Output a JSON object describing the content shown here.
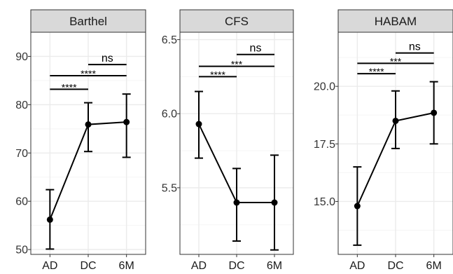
{
  "chart_data": [
    {
      "type": "line",
      "title": "Barthel",
      "categories": [
        "AD",
        "DC",
        "6M"
      ],
      "series": [
        {
          "values": [
            56.2,
            75.9,
            76.4
          ],
          "lower": [
            50.1,
            70.3,
            69.1
          ],
          "upper": [
            62.4,
            80.4,
            82.2
          ]
        }
      ],
      "ylim": [
        49,
        95
      ],
      "yticks": [
        50,
        60,
        70,
        80,
        90
      ],
      "ytick_labels": [
        "50",
        "60",
        "70",
        "80",
        "90"
      ],
      "significance": [
        {
          "from": "AD",
          "to": "DC",
          "label": "****",
          "y": 83.2
        },
        {
          "from": "AD",
          "to": "6M",
          "label": "****",
          "y": 86.0
        },
        {
          "from": "DC",
          "to": "6M",
          "label": "ns",
          "y": 88.3
        }
      ],
      "grid": true
    },
    {
      "type": "line",
      "title": "CFS",
      "categories": [
        "AD",
        "DC",
        "6M"
      ],
      "series": [
        {
          "values": [
            5.93,
            5.4,
            5.4
          ],
          "lower": [
            5.7,
            5.14,
            5.08
          ],
          "upper": [
            6.15,
            5.63,
            5.72
          ]
        }
      ],
      "ylim": [
        5.05,
        6.55
      ],
      "yticks": [
        5.5,
        6.0,
        6.5
      ],
      "ytick_labels": [
        "5.5",
        "6.0",
        "6.5"
      ],
      "significance": [
        {
          "from": "AD",
          "to": "DC",
          "label": "****",
          "y": 6.25
        },
        {
          "from": "AD",
          "to": "6M",
          "label": "***",
          "y": 6.32
        },
        {
          "from": "DC",
          "to": "6M",
          "label": "ns",
          "y": 6.4
        }
      ],
      "grid": true
    },
    {
      "type": "line",
      "title": "HABAM",
      "categories": [
        "AD",
        "DC",
        "6M"
      ],
      "series": [
        {
          "values": [
            14.8,
            18.5,
            18.85
          ],
          "lower": [
            13.1,
            17.3,
            17.5
          ],
          "upper": [
            16.5,
            19.8,
            20.2
          ]
        }
      ],
      "ylim": [
        12.7,
        22.35
      ],
      "yticks": [
        15.0,
        17.5,
        20.0
      ],
      "ytick_labels": [
        "15.0",
        "17.5",
        "20.0"
      ],
      "significance": [
        {
          "from": "AD",
          "to": "DC",
          "label": "****",
          "y": 20.55
        },
        {
          "from": "AD",
          "to": "6M",
          "label": "***",
          "y": 21.0
        },
        {
          "from": "DC",
          "to": "6M",
          "label": "ns",
          "y": 21.45
        }
      ],
      "grid": true
    }
  ],
  "colors": {
    "line": "#000000",
    "panel_border": "#333333",
    "strip_fill": "#d9d9d9",
    "grid_major": "#ebebeb",
    "grid_minor": "#f5f5f5"
  }
}
